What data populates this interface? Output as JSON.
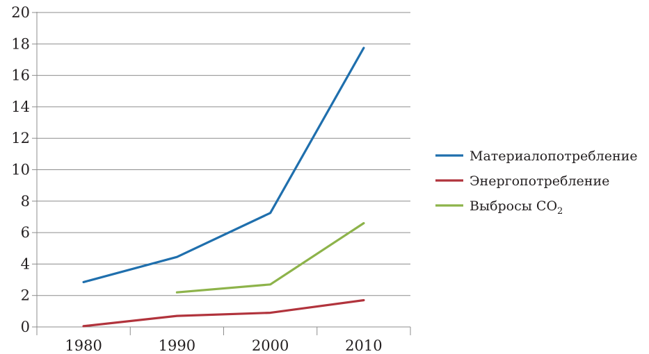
{
  "chart_data": {
    "type": "line",
    "x": [
      "1980",
      "1990",
      "2000",
      "2010"
    ],
    "y_ticks": [
      "0",
      "2",
      "4",
      "6",
      "8",
      "10",
      "12",
      "14",
      "16",
      "18",
      "20"
    ],
    "ylim": [
      0,
      20
    ],
    "grid": true,
    "legend_position": "right",
    "series": [
      {
        "name": "Материалопотребление",
        "color": "#1f6fad",
        "values": [
          2.85,
          4.45,
          7.25,
          17.75
        ]
      },
      {
        "name": "Энергопотребление",
        "color": "#b1333c",
        "values": [
          0.05,
          0.7,
          0.9,
          1.7
        ]
      },
      {
        "name": "Выбросы CO",
        "name_subscript": "2",
        "color": "#8db34a",
        "values": [
          null,
          2.2,
          2.7,
          6.6
        ]
      }
    ]
  }
}
